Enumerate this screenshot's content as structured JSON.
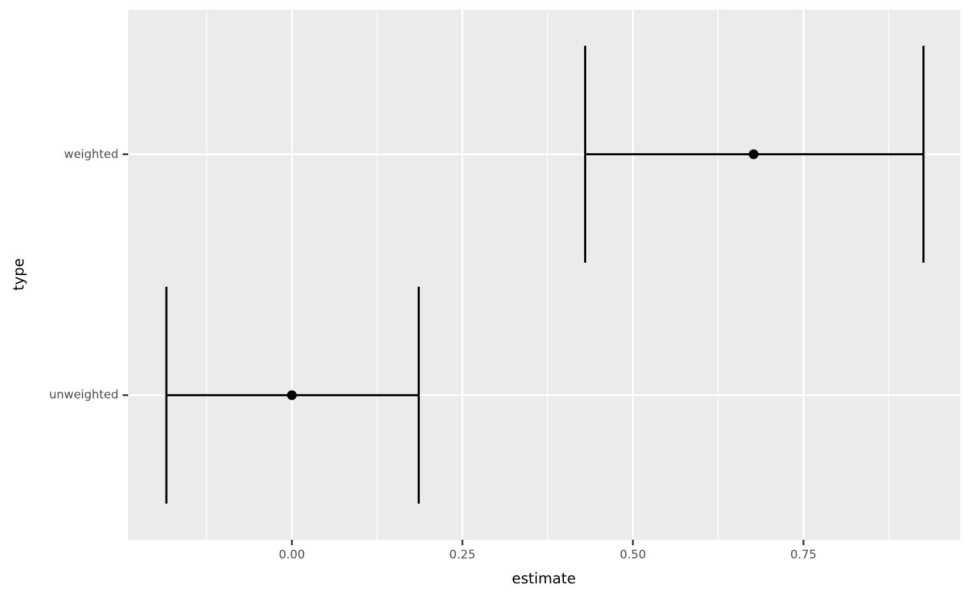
{
  "chart_data": {
    "type": "scatter",
    "subtype": "pointrange-errorbar-horizontal",
    "title": "",
    "xlabel": "estimate",
    "ylabel": "type",
    "categories": [
      "unweighted",
      "weighted"
    ],
    "series": [
      {
        "category": "unweighted",
        "estimate": 0.0,
        "conf_low": -0.184,
        "conf_high": 0.186
      },
      {
        "category": "weighted",
        "estimate": 0.677,
        "conf_low": 0.43,
        "conf_high": 0.926
      }
    ],
    "x_ticks": [
      0.0,
      0.25,
      0.5,
      0.75
    ],
    "x_tick_labels": [
      "0.00",
      "0.25",
      "0.50",
      "0.75"
    ],
    "x_minor_ticks": [
      -0.125,
      0.125,
      0.375,
      0.625,
      0.875
    ],
    "xlim": [
      -0.24,
      0.98
    ],
    "y_units": {
      "unweighted": 1,
      "weighted": 2
    },
    "ylim_units": [
      0.4,
      2.6
    ],
    "errorbar_half_height_units": 0.45,
    "grid": true,
    "legend_position": "none"
  },
  "style": {
    "panel_bg": "#EBEBEB",
    "grid_color": "#FFFFFF",
    "data_color": "#000000",
    "tick_label_color": "#4D4D4D",
    "axis_title_color": "#000000",
    "tick_mark_color": "#333333"
  }
}
